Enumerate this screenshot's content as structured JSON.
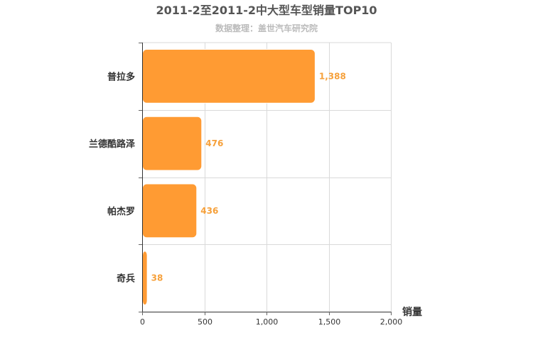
{
  "chart_data": {
    "type": "bar",
    "orientation": "horizontal",
    "title": "2011-2至2011-2中大型车型销量TOP10",
    "subtitle": "数据整理：盖世汽车研究院",
    "xlabel": "销量",
    "ylabel": "",
    "categories": [
      "普拉多",
      "兰德酷路泽",
      "帕杰罗",
      "奇兵"
    ],
    "values": [
      1388,
      476,
      436,
      38
    ],
    "value_labels": [
      "1,388",
      "476",
      "436",
      "38"
    ],
    "xlim": [
      0,
      2000
    ],
    "x_ticks": [
      0,
      500,
      1000,
      1500,
      2000
    ],
    "x_tick_labels": [
      "0",
      "500",
      "1,000",
      "1,500",
      "2,000"
    ],
    "grid": true,
    "legend": "none",
    "bar_color": "#ff9b33",
    "label_color": "#f6a03a"
  }
}
